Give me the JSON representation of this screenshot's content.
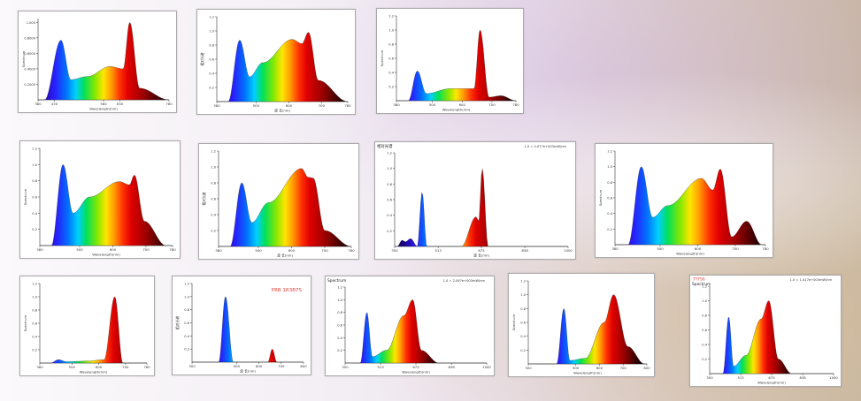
{
  "chart_data": [
    {
      "id": "p1",
      "type": "area",
      "ylabel": "Spectrum",
      "xlabel": "Wavelength(nm)",
      "xticks": [
        "380",
        "430",
        "580",
        "630",
        "780"
      ],
      "yticks": [
        "0.2000",
        "0.4000",
        "0.6000",
        "0.8000",
        "1.000"
      ],
      "xlim": [
        380,
        780
      ],
      "ylim": [
        0,
        1.05
      ],
      "peaks": [
        [
          400,
          0
        ],
        [
          450,
          0.77
        ],
        [
          480,
          0.26
        ],
        [
          530,
          0.3
        ],
        [
          600,
          0.43
        ],
        [
          640,
          0.4
        ],
        [
          660,
          1.0
        ],
        [
          690,
          0.15
        ],
        [
          780,
          0
        ]
      ]
    },
    {
      "id": "p2",
      "type": "area",
      "ylabel": "相对光谱",
      "xlabel": "波 长(nm)",
      "xticks": [
        "380",
        "500",
        "600",
        "700",
        "780"
      ],
      "yticks": [
        "0.2",
        "0.4",
        "0.6",
        "0.8",
        "1.0",
        "1.2"
      ],
      "xlim": [
        380,
        780
      ],
      "ylim": [
        0,
        1.2
      ],
      "peaks": [
        [
          415,
          0
        ],
        [
          450,
          0.87
        ],
        [
          480,
          0.35
        ],
        [
          520,
          0.55
        ],
        [
          610,
          0.88
        ],
        [
          640,
          0.82
        ],
        [
          660,
          0.98
        ],
        [
          690,
          0.3
        ],
        [
          780,
          0
        ]
      ]
    },
    {
      "id": "p3",
      "type": "area",
      "ylabel": "Spectrum",
      "xlabel": "Wavelength(nm)",
      "xticks": [
        "380",
        "500",
        "600",
        "700",
        "780"
      ],
      "yticks": [
        "0.2",
        "0.4",
        "0.6",
        "0.8",
        "1.0",
        "1.2"
      ],
      "xlim": [
        380,
        780
      ],
      "ylim": [
        0,
        1.2
      ],
      "peaks": [
        [
          420,
          0
        ],
        [
          450,
          0.42
        ],
        [
          480,
          0.1
        ],
        [
          560,
          0.17
        ],
        [
          640,
          0.17
        ],
        [
          660,
          1.0
        ],
        [
          690,
          0.05
        ],
        [
          730,
          0.07
        ],
        [
          780,
          0
        ]
      ]
    },
    {
      "id": "p4",
      "type": "area",
      "ylabel": "Spectrum",
      "xlabel": "Wavelength(nm)",
      "xticks": [
        "380",
        "500",
        "600",
        "700",
        "780"
      ],
      "yticks": [
        "0.2",
        "0.4",
        "0.6",
        "0.8",
        "1.0",
        "1.2"
      ],
      "xlim": [
        380,
        780
      ],
      "ylim": [
        0,
        1.2
      ],
      "peaks": [
        [
          415,
          0
        ],
        [
          450,
          1.0
        ],
        [
          480,
          0.4
        ],
        [
          530,
          0.6
        ],
        [
          620,
          0.79
        ],
        [
          650,
          0.75
        ],
        [
          665,
          0.87
        ],
        [
          695,
          0.3
        ],
        [
          760,
          0
        ]
      ]
    },
    {
      "id": "p5",
      "type": "area",
      "ylabel": "相对光谱",
      "xlabel": "波 长(nm)",
      "xticks": [
        "380",
        "500",
        "600",
        "700",
        "780"
      ],
      "yticks": [
        "0.2",
        "0.4",
        "0.6",
        "0.8",
        "1.0",
        "1.2"
      ],
      "xlim": [
        380,
        780
      ],
      "ylim": [
        0,
        1.2
      ],
      "peaks": [
        [
          415,
          0
        ],
        [
          450,
          0.8
        ],
        [
          480,
          0.3
        ],
        [
          530,
          0.55
        ],
        [
          630,
          0.98
        ],
        [
          650,
          0.87
        ],
        [
          665,
          0.86
        ],
        [
          700,
          0.2
        ],
        [
          780,
          0
        ]
      ]
    },
    {
      "id": "p6",
      "type": "area",
      "ylabel": "",
      "xlabel": "波 长(nm)",
      "xticks": [
        "350",
        "513",
        "675",
        "838",
        "1000"
      ],
      "yticks": [
        "0.2",
        "0.4",
        "0.6",
        "0.8",
        "1.0",
        "1.2"
      ],
      "xlim": [
        350,
        1000
      ],
      "ylim": [
        0,
        1.2
      ],
      "note": "1.0 = 2.077e+003mW/nm",
      "title": "相对光谱",
      "peaks": [
        [
          360,
          0
        ],
        [
          378,
          0.08
        ],
        [
          390,
          0.06
        ],
        [
          410,
          0.1
        ],
        [
          435,
          0
        ],
        [
          453,
          0.7
        ],
        [
          470,
          0
        ],
        [
          600,
          0
        ],
        [
          655,
          0.38
        ],
        [
          665,
          0.32
        ],
        [
          678,
          1.0
        ],
        [
          700,
          0
        ],
        [
          1000,
          0
        ]
      ]
    },
    {
      "id": "p7",
      "type": "area",
      "ylabel": "Spectrum",
      "xlabel": "Wavelength(nm)",
      "xticks": [
        "380",
        "500",
        "600",
        "700",
        "780"
      ],
      "yticks": [
        "0.2",
        "0.4",
        "0.6",
        "0.8",
        "1.0",
        "1.2"
      ],
      "xlim": [
        380,
        780
      ],
      "ylim": [
        0,
        1.2
      ],
      "peaks": [
        [
          415,
          0
        ],
        [
          450,
          1.0
        ],
        [
          480,
          0.35
        ],
        [
          520,
          0.5
        ],
        [
          610,
          0.85
        ],
        [
          640,
          0.7
        ],
        [
          660,
          0.97
        ],
        [
          690,
          0.1
        ],
        [
          730,
          0.3
        ],
        [
          770,
          0
        ]
      ]
    },
    {
      "id": "p8",
      "type": "area",
      "ylabel": "Spectrum",
      "xlabel": "Wavelength(nm)",
      "xticks": [
        "380",
        "500",
        "600",
        "700",
        "780"
      ],
      "yticks": [
        "0.2",
        "0.4",
        "0.6",
        "0.8",
        "1.0",
        "1.2"
      ],
      "xlim": [
        380,
        780
      ],
      "ylim": [
        0,
        1.2
      ],
      "peaks": [
        [
          420,
          0
        ],
        [
          450,
          0.05
        ],
        [
          480,
          0.02
        ],
        [
          560,
          0.03
        ],
        [
          620,
          0.05
        ],
        [
          660,
          1.0
        ],
        [
          690,
          0
        ],
        [
          780,
          0
        ]
      ]
    },
    {
      "id": "p9",
      "type": "area",
      "ylabel": "相对光谱",
      "xlabel": "波 长(nm)",
      "xticks": [
        "300",
        "500",
        "600",
        "700",
        "800"
      ],
      "yticks": [
        "0.2",
        "0.4",
        "0.6",
        "0.8",
        "1.0",
        "1.2"
      ],
      "xlim": [
        300,
        800
      ],
      "ylim": [
        0,
        1.2
      ],
      "note": "PRB 1R3B7S",
      "peaks": [
        [
          420,
          0
        ],
        [
          450,
          1.0
        ],
        [
          485,
          0
        ],
        [
          640,
          0
        ],
        [
          660,
          0.2
        ],
        [
          680,
          0
        ],
        [
          800,
          0
        ]
      ]
    },
    {
      "id": "p10",
      "type": "area",
      "ylabel": "",
      "xlabel": "Wavelength(nm)",
      "xticks": [
        "350",
        "513",
        "675",
        "838",
        "1000"
      ],
      "yticks": [
        "0.2",
        "0.4",
        "0.6",
        "0.8",
        "1.0",
        "1.2"
      ],
      "xlim": [
        350,
        1000
      ],
      "ylim": [
        0,
        1.2
      ],
      "title": "Spectrum",
      "note": "1.0 = 2.097e+003mW/nm",
      "peaks": [
        [
          420,
          0
        ],
        [
          450,
          0.8
        ],
        [
          475,
          0.1
        ],
        [
          540,
          0.2
        ],
        [
          620,
          0.75
        ],
        [
          660,
          1.0
        ],
        [
          700,
          0.2
        ],
        [
          780,
          0
        ],
        [
          1000,
          0
        ]
      ]
    },
    {
      "id": "p11",
      "type": "area",
      "ylabel": "Spectrum",
      "xlabel": "Wavelength(nm)",
      "xticks": [
        "300",
        "500",
        "600",
        "700",
        "800"
      ],
      "yticks": [
        "0.2",
        "0.4",
        "0.6",
        "0.8",
        "1.0",
        "1.2"
      ],
      "xlim": [
        300,
        800
      ],
      "ylim": [
        0,
        1.2
      ],
      "peaks": [
        [
          420,
          0
        ],
        [
          450,
          0.8
        ],
        [
          475,
          0.05
        ],
        [
          540,
          0.08
        ],
        [
          620,
          0.6
        ],
        [
          660,
          1.0
        ],
        [
          720,
          0.25
        ],
        [
          790,
          0
        ]
      ]
    },
    {
      "id": "p12",
      "type": "area",
      "ylabel": "",
      "xlabel": "Wavelength(nm)",
      "xticks": [
        "350",
        "513",
        "675",
        "838",
        "1000"
      ],
      "yticks": [
        "0.2",
        "0.4",
        "0.6",
        "0.8",
        "1.0",
        "1.2"
      ],
      "xlim": [
        350,
        1000
      ],
      "ylim": [
        0,
        1.2
      ],
      "title": "Spectrum",
      "note": "1.0 = 1.417e+003mW/nm",
      "redlabel": "TYTS6",
      "peaks": [
        [
          420,
          0
        ],
        [
          450,
          0.78
        ],
        [
          475,
          0.1
        ],
        [
          540,
          0.25
        ],
        [
          620,
          0.75
        ],
        [
          660,
          1.0
        ],
        [
          710,
          0.2
        ],
        [
          780,
          0
        ],
        [
          1000,
          0
        ]
      ]
    }
  ]
}
